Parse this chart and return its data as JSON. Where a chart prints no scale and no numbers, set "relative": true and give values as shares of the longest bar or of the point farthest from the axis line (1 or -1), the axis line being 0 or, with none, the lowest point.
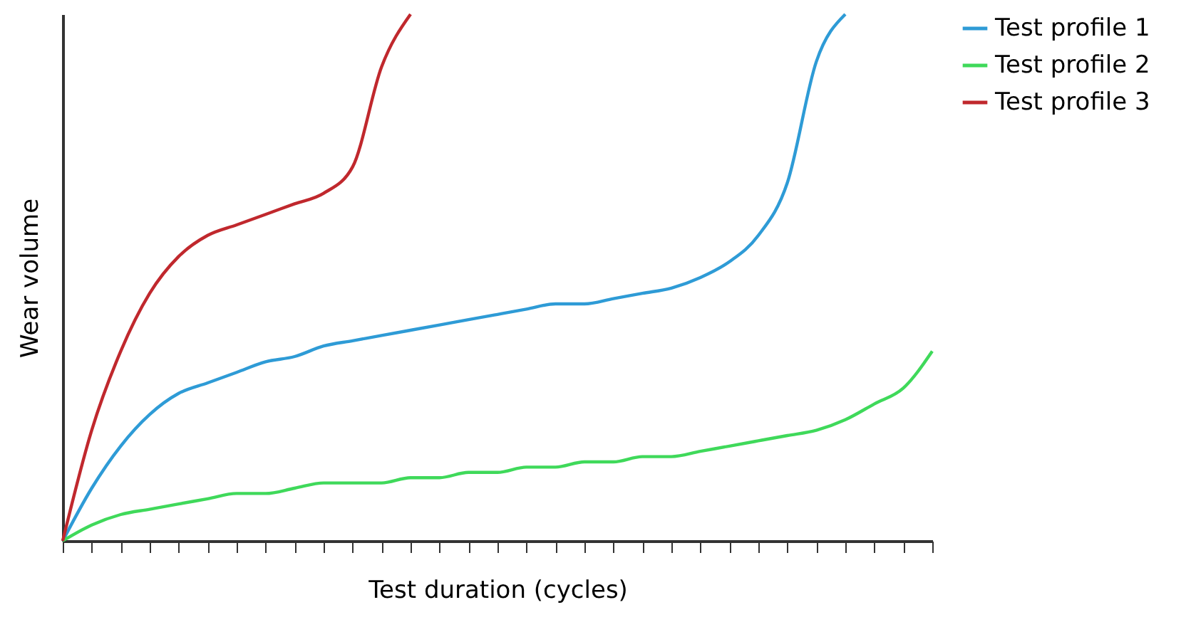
{
  "chart_data": {
    "type": "line",
    "relative": true,
    "xlabel": "Test duration (cycles)",
    "ylabel": "Wear volume",
    "legend": "top right",
    "grid": false,
    "marker": "none",
    "line_style": "solid",
    "categories": [
      null,
      null,
      null,
      null,
      null,
      null,
      null,
      null,
      null,
      null,
      null,
      null,
      null,
      null,
      null,
      null,
      null,
      null,
      null,
      null,
      null,
      null,
      null,
      null,
      null,
      null,
      null,
      null,
      null,
      null,
      null
    ],
    "series": [
      {
        "name": "Test profile 1",
        "color": "#2e9bd6",
        "values": [
          0,
          0.1,
          0.18,
          0.24,
          0.28,
          0.3,
          0.32,
          0.34,
          0.35,
          0.37,
          0.38,
          0.39,
          0.4,
          0.41,
          0.42,
          0.43,
          0.44,
          0.45,
          0.45,
          0.46,
          0.47,
          0.48,
          0.5,
          0.53,
          0.58,
          0.68,
          0.91,
          1,
          null,
          null,
          null
        ]
      },
      {
        "name": "Test profile 2",
        "color": "#3fd95a",
        "values": [
          0,
          0.03,
          0.05,
          0.06,
          0.07,
          0.08,
          0.09,
          0.09,
          0.1,
          0.11,
          0.11,
          0.11,
          0.12,
          0.12,
          0.13,
          0.13,
          0.14,
          0.14,
          0.15,
          0.15,
          0.16,
          0.16,
          0.17,
          0.18,
          0.19,
          0.2,
          0.21,
          0.23,
          0.26,
          0.29,
          0.36
        ]
      },
      {
        "name": "Test profile 3",
        "color": "#c0282d",
        "values": [
          0,
          0.21,
          0.36,
          0.47,
          0.54,
          0.58,
          0.6,
          0.62,
          0.64,
          0.66,
          0.71,
          0.9,
          1,
          null,
          null,
          null,
          null,
          null,
          null,
          null,
          null,
          null,
          null,
          null,
          null,
          null,
          null,
          null,
          null,
          null,
          null
        ]
      }
    ]
  }
}
